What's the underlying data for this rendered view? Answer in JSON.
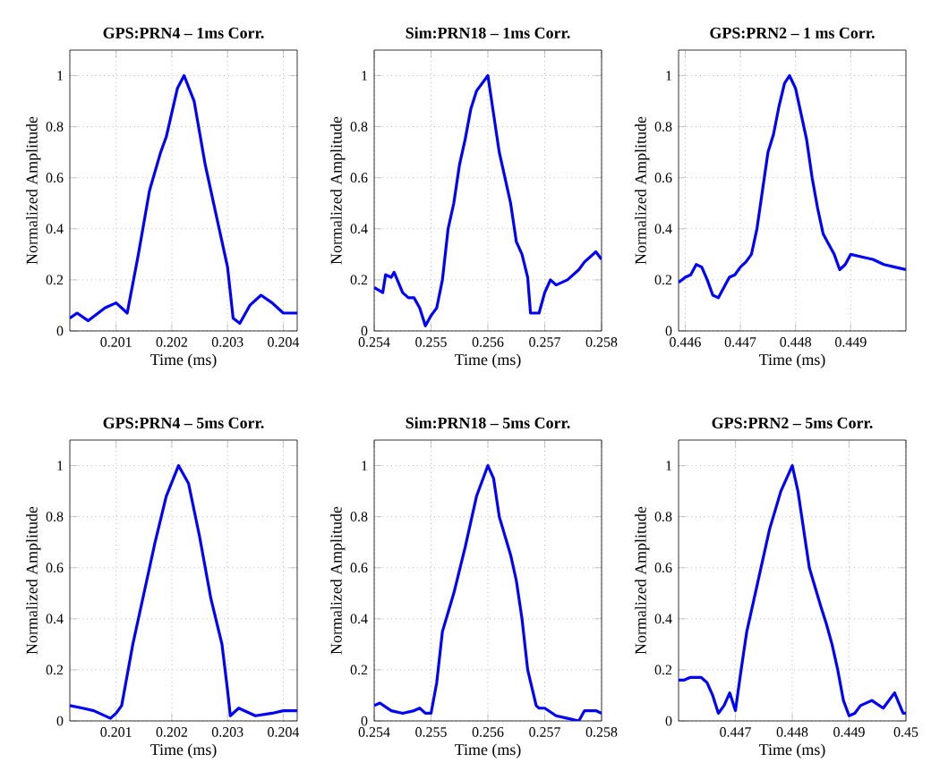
{
  "chart_data": [
    {
      "type": "line",
      "title": "GPS:PRN4 – 1ms Corr.",
      "xlabel": "Time (ms)",
      "ylabel": "Normalized Amplitude",
      "grid": true,
      "line_style": "solid",
      "xlim": [
        0.20017,
        0.20425
      ],
      "ylim": [
        0,
        1.1
      ],
      "xticks": [
        0.201,
        0.202,
        0.203,
        0.204
      ],
      "yticks": [
        0,
        0.2,
        0.4,
        0.6,
        0.8,
        1
      ],
      "series": [
        {
          "color": "#0000ff",
          "x": [
            0.20017,
            0.2003,
            0.2005,
            0.2008,
            0.201,
            0.2012,
            0.2014,
            0.2016,
            0.2018,
            0.2019,
            0.2021,
            0.20222,
            0.2024,
            0.2026,
            0.2028,
            0.203,
            0.2031,
            0.20322,
            0.2034,
            0.2036,
            0.2038,
            0.204,
            0.20425
          ],
          "values": [
            0.05,
            0.07,
            0.04,
            0.09,
            0.11,
            0.07,
            0.3,
            0.55,
            0.7,
            0.76,
            0.95,
            1.0,
            0.9,
            0.65,
            0.45,
            0.25,
            0.05,
            0.03,
            0.1,
            0.14,
            0.11,
            0.07,
            0.07
          ]
        }
      ]
    },
    {
      "type": "line",
      "title": "Sim:PRN18 – 1ms Corr.",
      "xlabel": "Time (ms)",
      "ylabel": "Normalized Amplitude",
      "grid": true,
      "line_style": "solid",
      "xlim": [
        0.254,
        0.258
      ],
      "ylim": [
        0,
        1.1
      ],
      "xticks": [
        0.254,
        0.255,
        0.256,
        0.257,
        0.258
      ],
      "yticks": [
        0,
        0.2,
        0.4,
        0.6,
        0.8,
        1
      ],
      "series": [
        {
          "color": "#0000ff",
          "x": [
            0.254,
            0.25415,
            0.2542,
            0.2543,
            0.25435,
            0.2545,
            0.2546,
            0.2547,
            0.2548,
            0.2549,
            0.255,
            0.2551,
            0.2552,
            0.2553,
            0.2554,
            0.2555,
            0.2556,
            0.2557,
            0.2558,
            0.256,
            0.2561,
            0.2562,
            0.2563,
            0.2564,
            0.2565,
            0.2566,
            0.2567,
            0.25675,
            0.2569,
            0.257,
            0.2571,
            0.2572,
            0.2574,
            0.2576,
            0.2577,
            0.2579,
            0.258
          ],
          "values": [
            0.17,
            0.15,
            0.22,
            0.21,
            0.23,
            0.15,
            0.13,
            0.13,
            0.09,
            0.02,
            0.06,
            0.09,
            0.2,
            0.4,
            0.5,
            0.65,
            0.75,
            0.87,
            0.94,
            1.0,
            0.85,
            0.7,
            0.6,
            0.5,
            0.35,
            0.3,
            0.21,
            0.07,
            0.07,
            0.15,
            0.2,
            0.18,
            0.2,
            0.24,
            0.27,
            0.31,
            0.28
          ]
        }
      ]
    },
    {
      "type": "line",
      "title": "GPS:PRN2 – 1 ms Corr.",
      "xlabel": "Time (ms)",
      "ylabel": "Normalized Amplitude",
      "grid": true,
      "line_style": "solid",
      "xlim": [
        0.44588,
        0.45
      ],
      "ylim": [
        0,
        1.1
      ],
      "xticks": [
        0.446,
        0.447,
        0.448,
        0.449
      ],
      "yticks": [
        0,
        0.2,
        0.4,
        0.6,
        0.8,
        1
      ],
      "series": [
        {
          "color": "#0000ff",
          "x": [
            0.44588,
            0.446,
            0.4461,
            0.4462,
            0.4463,
            0.4464,
            0.4465,
            0.4466,
            0.4467,
            0.4468,
            0.4469,
            0.447,
            0.4471,
            0.4472,
            0.4473,
            0.4474,
            0.4475,
            0.4476,
            0.4477,
            0.4478,
            0.44789,
            0.448,
            0.4481,
            0.4482,
            0.4483,
            0.4484,
            0.4485,
            0.4486,
            0.4487,
            0.4488,
            0.4489,
            0.449,
            0.4492,
            0.4494,
            0.4496,
            0.4498,
            0.45
          ],
          "values": [
            0.19,
            0.21,
            0.22,
            0.26,
            0.25,
            0.2,
            0.14,
            0.13,
            0.17,
            0.21,
            0.22,
            0.25,
            0.27,
            0.3,
            0.4,
            0.55,
            0.7,
            0.77,
            0.88,
            0.97,
            1.0,
            0.95,
            0.85,
            0.75,
            0.6,
            0.48,
            0.38,
            0.34,
            0.3,
            0.24,
            0.26,
            0.3,
            0.29,
            0.28,
            0.26,
            0.25,
            0.24
          ]
        }
      ]
    },
    {
      "type": "line",
      "title": "GPS:PRN4 – 5ms Corr.",
      "xlabel": "Time (ms)",
      "ylabel": "Normalized Amplitude",
      "grid": true,
      "line_style": "solid",
      "xlim": [
        0.20017,
        0.20425
      ],
      "ylim": [
        0,
        1.1
      ],
      "xticks": [
        0.201,
        0.202,
        0.203,
        0.204
      ],
      "yticks": [
        0,
        0.2,
        0.4,
        0.6,
        0.8,
        1
      ],
      "series": [
        {
          "color": "#0000ff",
          "x": [
            0.20017,
            0.2004,
            0.2006,
            0.2009,
            0.201,
            0.2011,
            0.2013,
            0.2015,
            0.2017,
            0.2019,
            0.20212,
            0.2023,
            0.2025,
            0.2027,
            0.2029,
            0.203,
            0.20305,
            0.2032,
            0.2035,
            0.2038,
            0.204,
            0.20425
          ],
          "values": [
            0.06,
            0.05,
            0.04,
            0.01,
            0.03,
            0.06,
            0.3,
            0.5,
            0.7,
            0.88,
            1.0,
            0.93,
            0.72,
            0.48,
            0.3,
            0.12,
            0.02,
            0.05,
            0.02,
            0.03,
            0.04,
            0.04
          ]
        }
      ]
    },
    {
      "type": "line",
      "title": "Sim:PRN18 – 5ms Corr.",
      "xlabel": "Time (ms)",
      "ylabel": "Normalized Amplitude",
      "grid": true,
      "line_style": "solid",
      "xlim": [
        0.254,
        0.258
      ],
      "ylim": [
        0,
        1.1
      ],
      "xticks": [
        0.254,
        0.255,
        0.256,
        0.257,
        0.258
      ],
      "yticks": [
        0,
        0.2,
        0.4,
        0.6,
        0.8,
        1
      ],
      "series": [
        {
          "color": "#0000ff",
          "x": [
            0.254,
            0.2541,
            0.2543,
            0.2545,
            0.2547,
            0.2548,
            0.2549,
            0.255,
            0.2551,
            0.2552,
            0.2554,
            0.2556,
            0.2558,
            0.256,
            0.2561,
            0.2562,
            0.2564,
            0.2565,
            0.2566,
            0.2567,
            0.25685,
            0.2569,
            0.257,
            0.2572,
            0.2574,
            0.2576,
            0.2577,
            0.2579,
            0.258
          ],
          "values": [
            0.06,
            0.07,
            0.04,
            0.03,
            0.04,
            0.05,
            0.03,
            0.03,
            0.15,
            0.35,
            0.5,
            0.68,
            0.88,
            1.0,
            0.95,
            0.8,
            0.65,
            0.55,
            0.4,
            0.2,
            0.06,
            0.05,
            0.05,
            0.02,
            0.01,
            0.0,
            0.04,
            0.04,
            0.03
          ]
        }
      ]
    },
    {
      "type": "line",
      "title": "GPS:PRN2 – 5ms Corr.",
      "xlabel": "Time (ms)",
      "ylabel": "Normalized Amplitude",
      "grid": true,
      "line_style": "solid",
      "xlim": [
        0.446,
        0.45
      ],
      "ylim": [
        0,
        1.1
      ],
      "xticks": [
        0.447,
        0.448,
        0.449,
        0.45
      ],
      "yticks": [
        0,
        0.2,
        0.4,
        0.6,
        0.8,
        1
      ],
      "series": [
        {
          "color": "#0000ff",
          "x": [
            0.446,
            0.4461,
            0.4462,
            0.4464,
            0.4465,
            0.4466,
            0.4467,
            0.4468,
            0.4469,
            0.447,
            0.4471,
            0.4472,
            0.4474,
            0.4476,
            0.4478,
            0.448,
            0.4481,
            0.4482,
            0.4483,
            0.4485,
            0.4486,
            0.4487,
            0.4488,
            0.4489,
            0.449,
            0.4491,
            0.4492,
            0.4494,
            0.4496,
            0.4498,
            0.44995,
            0.45
          ],
          "values": [
            0.16,
            0.16,
            0.17,
            0.17,
            0.15,
            0.1,
            0.03,
            0.06,
            0.11,
            0.04,
            0.2,
            0.35,
            0.55,
            0.75,
            0.9,
            1.0,
            0.9,
            0.75,
            0.6,
            0.45,
            0.38,
            0.3,
            0.2,
            0.08,
            0.02,
            0.03,
            0.06,
            0.08,
            0.05,
            0.11,
            0.03,
            0.03
          ]
        }
      ]
    }
  ]
}
